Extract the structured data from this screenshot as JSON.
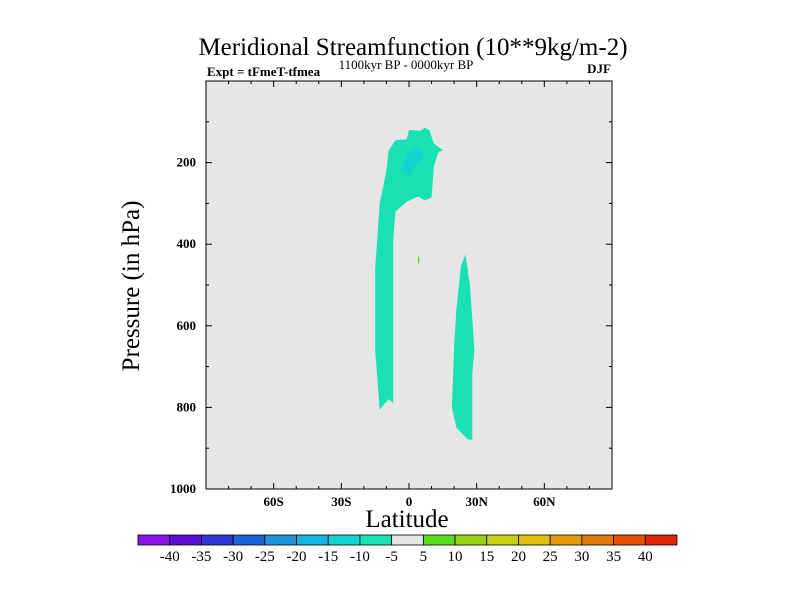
{
  "chart_data": {
    "type": "contour",
    "title": "Meridional Streamfunction (10**9kg/m-2)",
    "left_label": "Expt = tFmeT-tfmea",
    "center_label": "1100kyr BP - 0000kyr BP",
    "right_label": "DJF",
    "xlabel": "Latitude",
    "ylabel": "Pressure (in hPa)",
    "xlim": [
      -90,
      90
    ],
    "ylim": [
      1000,
      0
    ],
    "x_ticks": [
      -60,
      -30,
      0,
      30,
      60
    ],
    "x_tick_labels": [
      "60S",
      "30S",
      "0",
      "30N",
      "60N"
    ],
    "y_ticks": [
      200,
      400,
      600,
      800,
      1000
    ],
    "y_tick_labels": [
      "200",
      "400",
      "600",
      "800",
      "1000"
    ],
    "background_color": "#e6e6e6",
    "colorbar": {
      "labels": [
        "-40",
        "-35",
        "-30",
        "-25",
        "-20",
        "-15",
        "-10",
        "-5",
        "5",
        "10",
        "15",
        "20",
        "25",
        "30",
        "35",
        "40"
      ],
      "colors": [
        "#8c14e6",
        "#5a0fd2",
        "#2d37d2",
        "#1e64d7",
        "#1e96dc",
        "#14b4e1",
        "#14d2d2",
        "#19e1b4",
        "#e6e6e6",
        "#5adc1e",
        "#96d214",
        "#c8d214",
        "#e1be0a",
        "#e19b0a",
        "#e1780a",
        "#e6500a",
        "#dc280a"
      ]
    },
    "features": [
      {
        "name": "southern-upper-cell",
        "level_range": "-10 to -5",
        "color": "#19e1b4",
        "outline": [
          [
            -13,
            806
          ],
          [
            -15,
            660
          ],
          [
            -15,
            460
          ],
          [
            -13,
            300
          ],
          [
            -10,
            220
          ],
          [
            -9,
            170
          ],
          [
            -6,
            145
          ],
          [
            -1,
            143
          ],
          [
            0,
            120
          ],
          [
            5,
            122
          ],
          [
            7,
            115
          ],
          [
            9,
            120
          ],
          [
            11,
            153
          ],
          [
            15,
            170
          ],
          [
            13,
            175
          ],
          [
            11,
            210
          ],
          [
            10,
            285
          ],
          [
            7,
            293
          ],
          [
            4,
            283
          ],
          [
            -1,
            296
          ],
          [
            -6,
            320
          ],
          [
            -7,
            390
          ],
          [
            -7,
            560
          ],
          [
            -7,
            790
          ],
          [
            -9,
            780
          ],
          [
            -11,
            792
          ],
          [
            -13,
            806
          ]
        ]
      },
      {
        "name": "core-minimum",
        "level_range": "-15 to -10",
        "color": "#14d2d2",
        "outline": [
          [
            -3,
            220
          ],
          [
            -1,
            175
          ],
          [
            2,
            165
          ],
          [
            6,
            168
          ],
          [
            6,
            195
          ],
          [
            3,
            205
          ],
          [
            0,
            232
          ],
          [
            -3,
            220
          ]
        ]
      },
      {
        "name": "positive-spot",
        "level_range": "5 to 10",
        "color": "#5adc1e",
        "outline": [
          [
            4,
            450
          ],
          [
            4,
            425
          ],
          [
            4.8,
            440
          ],
          [
            4,
            450
          ]
        ]
      },
      {
        "name": "northern-lower-cell",
        "level_range": "-10 to -5",
        "color": "#19e1b4",
        "outline": [
          [
            26,
            878
          ],
          [
            21,
            850
          ],
          [
            19,
            800
          ],
          [
            20,
            650
          ],
          [
            21,
            560
          ],
          [
            23,
            455
          ],
          [
            25,
            425
          ],
          [
            27,
            500
          ],
          [
            28,
            580
          ],
          [
            29,
            660
          ],
          [
            28,
            720
          ],
          [
            28,
            800
          ],
          [
            28,
            880
          ],
          [
            26,
            878
          ]
        ]
      }
    ]
  }
}
